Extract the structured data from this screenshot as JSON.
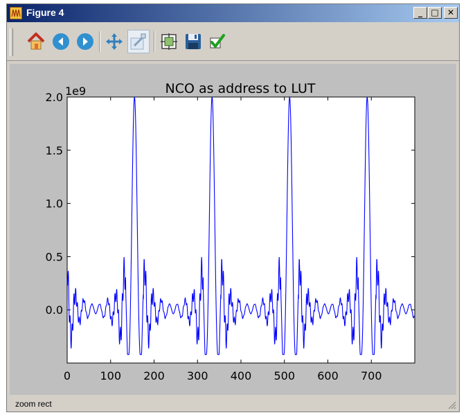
{
  "window": {
    "title": "Figure 4",
    "controls": {
      "minimize": "_",
      "maximize": "□",
      "close": "✕"
    }
  },
  "toolbar": {
    "buttons": [
      {
        "name": "home",
        "icon": "home-icon"
      },
      {
        "name": "back",
        "icon": "back-arrow-icon"
      },
      {
        "name": "forward",
        "icon": "forward-arrow-icon"
      },
      {
        "name": "pan",
        "icon": "pan-arrows-icon"
      },
      {
        "name": "zoom",
        "icon": "zoom-rect-icon",
        "active": true
      },
      {
        "name": "subplots",
        "icon": "subplot-config-icon"
      },
      {
        "name": "save",
        "icon": "floppy-disk-icon"
      },
      {
        "name": "edit",
        "icon": "checkmark-icon"
      }
    ]
  },
  "status": {
    "text": "zoom rect"
  },
  "chart_data": {
    "type": "line",
    "title": "NCO as address to LUT",
    "xlabel": "",
    "ylabel": "",
    "offset_label": "1e9",
    "xlim": [
      0,
      800
    ],
    "ylim": [
      -0.5,
      2.0
    ],
    "xticks": [
      "0",
      "100",
      "200",
      "300",
      "400",
      "500",
      "600",
      "700"
    ],
    "yticks": [
      "0.0",
      "0.5",
      "1.0",
      "1.5",
      "2.0"
    ],
    "series": [
      {
        "color": "#0000ff",
        "description": "periodic sinc-like pulses peaking at 2.0e9 with side lobes down to about -0.42e9",
        "peak_centers": [
          155,
          333,
          512,
          690
        ],
        "peak_value": 2.0,
        "min_value": -0.42,
        "period": 178.5
      }
    ],
    "grid": false
  }
}
